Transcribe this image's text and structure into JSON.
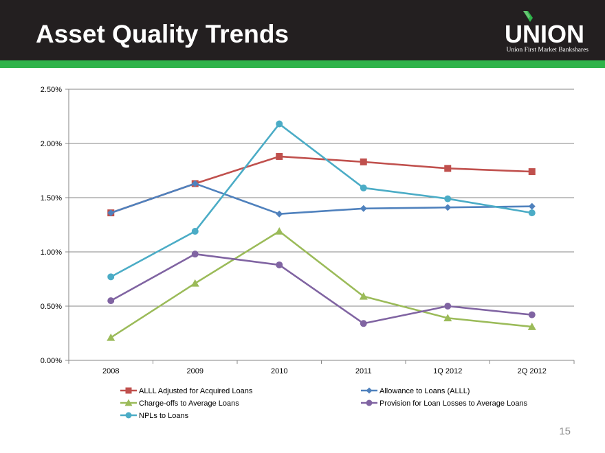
{
  "header": {
    "title": "Asset Quality Trends",
    "logo_word": "UNION",
    "logo_subtitle": "Union First Market Bankshares"
  },
  "colors": {
    "header_bg": "#231f20",
    "accent_green": "#2fb34a"
  },
  "page_number": "15",
  "chart_data": {
    "type": "line",
    "title": "",
    "xlabel": "",
    "ylabel": "",
    "categories": [
      "2008",
      "2009",
      "2010",
      "2011",
      "1Q 2012",
      "2Q 2012"
    ],
    "ylim": [
      0,
      2.5
    ],
    "yticks": [
      0,
      0.5,
      1.0,
      1.5,
      2.0,
      2.5
    ],
    "ytick_labels": [
      "0.00%",
      "0.50%",
      "1.00%",
      "1.50%",
      "2.00%",
      "2.50%"
    ],
    "grid": true,
    "legend_position": "bottom",
    "series": [
      {
        "name": "ALLL Adjusted for Acquired Loans",
        "color": "#c0504d",
        "marker": "square",
        "values": [
          1.36,
          1.63,
          1.88,
          1.83,
          1.77,
          1.74
        ]
      },
      {
        "name": "Allowance to Loans (ALLL)",
        "color": "#4f81bd",
        "marker": "diamond",
        "values": [
          1.36,
          1.63,
          1.35,
          1.4,
          1.41,
          1.42
        ]
      },
      {
        "name": "Charge-offs to Average Loans",
        "color": "#9bbb59",
        "marker": "triangle",
        "values": [
          0.21,
          0.71,
          1.19,
          0.59,
          0.39,
          0.31
        ]
      },
      {
        "name": "Provision for Loan Losses to Average Loans",
        "color": "#8064a2",
        "marker": "circle",
        "values": [
          0.55,
          0.98,
          0.88,
          0.34,
          0.5,
          0.42
        ]
      },
      {
        "name": "NPLs to Loans",
        "color": "#4bacc6",
        "marker": "circle",
        "values": [
          0.77,
          1.19,
          2.18,
          1.59,
          1.49,
          1.36
        ]
      }
    ]
  }
}
